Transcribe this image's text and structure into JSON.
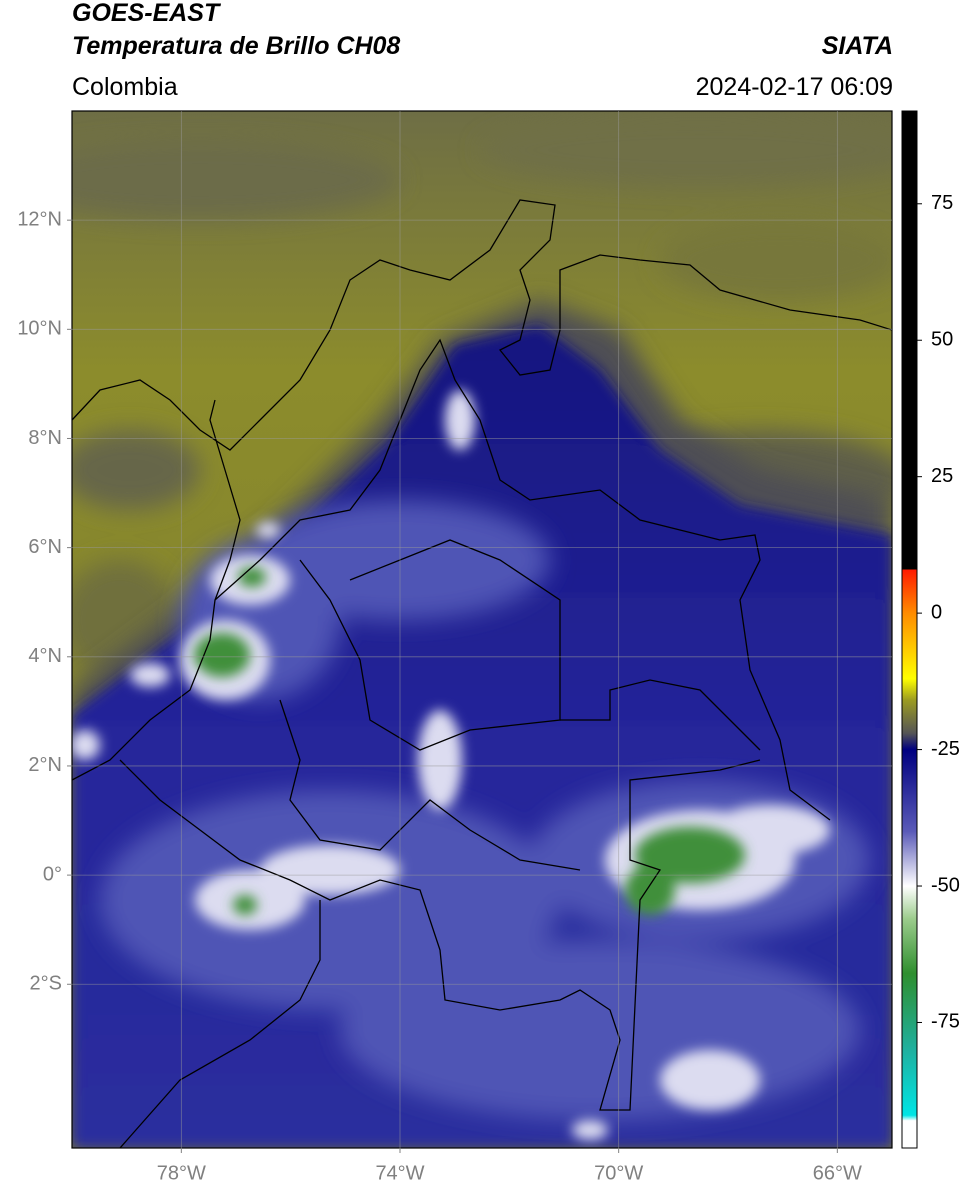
{
  "header": {
    "title_line1": "GOES-EAST",
    "title_line2": "Temperatura de Brillo CH08",
    "source": "SIATA",
    "region": "Colombia",
    "datetime": "2024-02-17 06:09"
  },
  "map": {
    "xlim": [
      -80,
      -65
    ],
    "ylim": [
      -5,
      14
    ],
    "xticks": [
      {
        "value": -78,
        "label": "78°W"
      },
      {
        "value": -74,
        "label": "74°W"
      },
      {
        "value": -70,
        "label": "70°W"
      },
      {
        "value": -66,
        "label": "66°W"
      }
    ],
    "yticks": [
      {
        "value": 12,
        "label": "12°N"
      },
      {
        "value": 10,
        "label": "10°N"
      },
      {
        "value": 8,
        "label": "8°N"
      },
      {
        "value": 6,
        "label": "6°N"
      },
      {
        "value": 4,
        "label": "4°N"
      },
      {
        "value": 2,
        "label": "2°N"
      },
      {
        "value": 0,
        "label": "0°"
      },
      {
        "value": -2,
        "label": "2°S"
      }
    ],
    "grid": true
  },
  "colorbar": {
    "clim": [
      -98,
      92
    ],
    "ticks": [
      75,
      50,
      25,
      0,
      -25,
      -50,
      -75
    ],
    "colormap": [
      {
        "value": 92,
        "color": "#000000"
      },
      {
        "value": 8,
        "color": "#000000"
      },
      {
        "value": 8,
        "color": "#ff1a00"
      },
      {
        "value": 0,
        "color": "#ff8c00"
      },
      {
        "value": -12,
        "color": "#ffff00"
      },
      {
        "value": -16,
        "color": "#9a9a22"
      },
      {
        "value": -22,
        "color": "#555555"
      },
      {
        "value": -25,
        "color": "#000080"
      },
      {
        "value": -40,
        "color": "#5a5ab8"
      },
      {
        "value": -50,
        "color": "#ffffff"
      },
      {
        "value": -56,
        "color": "#9ccc8c"
      },
      {
        "value": -66,
        "color": "#2f8f2f"
      },
      {
        "value": -80,
        "color": "#1fb09f"
      },
      {
        "value": -92,
        "color": "#00e5e5"
      },
      {
        "value": -93,
        "color": "#ffffff"
      },
      {
        "value": -98,
        "color": "#ffffff"
      }
    ]
  }
}
